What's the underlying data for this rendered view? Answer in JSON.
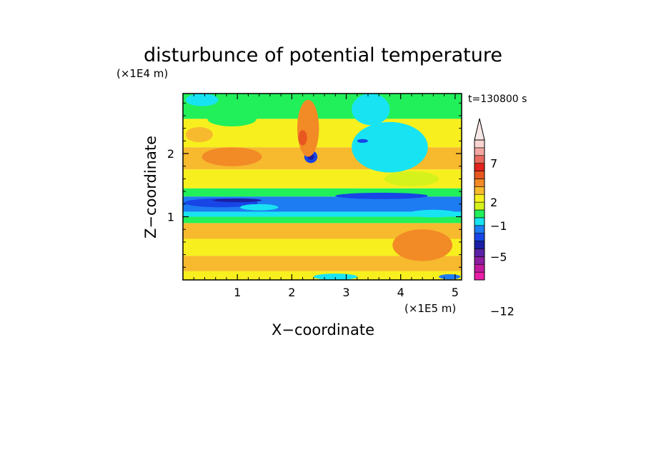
{
  "chart_data": {
    "type": "heatmap",
    "title": "disturbunce of potential temperature",
    "xlabel": "X−coordinate",
    "ylabel": "Z−coordinate",
    "x_unit": "(×1E5 m)",
    "y_unit": "(×1E4 m)",
    "time_label": "t=130800 s",
    "xlim": [
      0,
      5.12
    ],
    "ylim": [
      0,
      2.95
    ],
    "x_ticks": [
      "1",
      "2",
      "3",
      "4",
      "5"
    ],
    "y_ticks": [
      "1",
      "2"
    ],
    "colorbar": {
      "colors": [
        "#e81fa6",
        "#c11a9e",
        "#8c1ea0",
        "#5b22a5",
        "#1a1fa6",
        "#1745e6",
        "#1d7cf2",
        "#18e3f2",
        "#22f05a",
        "#d6f21c",
        "#f7f01e",
        "#f7b92e",
        "#f28a26",
        "#e85720",
        "#e0231c",
        "#e86a5e",
        "#f2a8a0",
        "#f7d4d0"
      ],
      "overflow_color": "#f7e7e5",
      "tick_labels": [
        "−12",
        "−5",
        "−1",
        "2",
        "7"
      ],
      "tick_values": [
        -12,
        -5,
        -1,
        2,
        7
      ]
    },
    "bands": [
      {
        "z": [
          0.0,
          0.14
        ],
        "level": 2
      },
      {
        "z": [
          0.14,
          0.38
        ],
        "level": 3
      },
      {
        "z": [
          0.38,
          0.65
        ],
        "level": 2
      },
      {
        "z": [
          0.65,
          0.9
        ],
        "level": 3
      },
      {
        "z": [
          0.9,
          1.0
        ],
        "level": 0
      },
      {
        "z": [
          1.0,
          1.08
        ],
        "level": -1
      },
      {
        "z": [
          1.08,
          1.32
        ],
        "level": -2
      },
      {
        "z": [
          1.32,
          1.45
        ],
        "level": 0
      },
      {
        "z": [
          1.45,
          1.75
        ],
        "level": 2
      },
      {
        "z": [
          1.75,
          2.1
        ],
        "level": 3
      },
      {
        "z": [
          2.1,
          2.55
        ],
        "level": 2
      },
      {
        "z": [
          2.55,
          2.95
        ],
        "level": 0
      }
    ],
    "features": [
      {
        "x": 0.7,
        "z": 1.22,
        "rx": 0.68,
        "rz": 0.07,
        "level": -3
      },
      {
        "x": 1.0,
        "z": 1.26,
        "rx": 0.45,
        "rz": 0.03,
        "level": -4
      },
      {
        "x": 3.65,
        "z": 1.33,
        "rx": 0.85,
        "rz": 0.05,
        "level": -3
      },
      {
        "x": 2.35,
        "z": 1.95,
        "rx": 0.12,
        "rz": 0.1,
        "level": -3
      },
      {
        "x": 2.35,
        "z": 1.95,
        "rx": 0.06,
        "rz": 0.05,
        "level": -4
      },
      {
        "x": 3.8,
        "z": 2.1,
        "rx": 0.7,
        "rz": 0.4,
        "level": -1
      },
      {
        "x": 3.45,
        "z": 2.7,
        "rx": 0.35,
        "rz": 0.25,
        "level": -1
      },
      {
        "x": 3.3,
        "z": 2.2,
        "rx": 0.1,
        "rz": 0.03,
        "level": -3
      },
      {
        "x": 2.3,
        "z": 2.4,
        "rx": 0.2,
        "rz": 0.45,
        "level": 4
      },
      {
        "x": 2.2,
        "z": 2.25,
        "rx": 0.08,
        "rz": 0.12,
        "level": 5
      },
      {
        "x": 0.9,
        "z": 1.95,
        "rx": 0.55,
        "rz": 0.15,
        "level": 4
      },
      {
        "x": 4.4,
        "z": 0.55,
        "rx": 0.55,
        "rz": 0.25,
        "level": 4
      },
      {
        "x": 0.9,
        "z": 2.55,
        "rx": 0.45,
        "rz": 0.12,
        "level": 0
      },
      {
        "x": 1.4,
        "z": 1.15,
        "rx": 0.35,
        "rz": 0.05,
        "level": -1
      },
      {
        "x": 4.6,
        "z": 1.05,
        "rx": 0.45,
        "rz": 0.06,
        "level": -1
      },
      {
        "x": 0.35,
        "z": 2.85,
        "rx": 0.3,
        "rz": 0.1,
        "level": -1
      },
      {
        "x": 2.8,
        "z": 0.05,
        "rx": 0.4,
        "rz": 0.05,
        "level": -1
      },
      {
        "x": 4.9,
        "z": 0.05,
        "rx": 0.2,
        "rz": 0.04,
        "level": -2
      },
      {
        "x": 4.2,
        "z": 1.6,
        "rx": 0.5,
        "rz": 0.12,
        "level": 1
      },
      {
        "x": 0.3,
        "z": 2.3,
        "rx": 0.25,
        "rz": 0.12,
        "level": 3
      }
    ]
  }
}
